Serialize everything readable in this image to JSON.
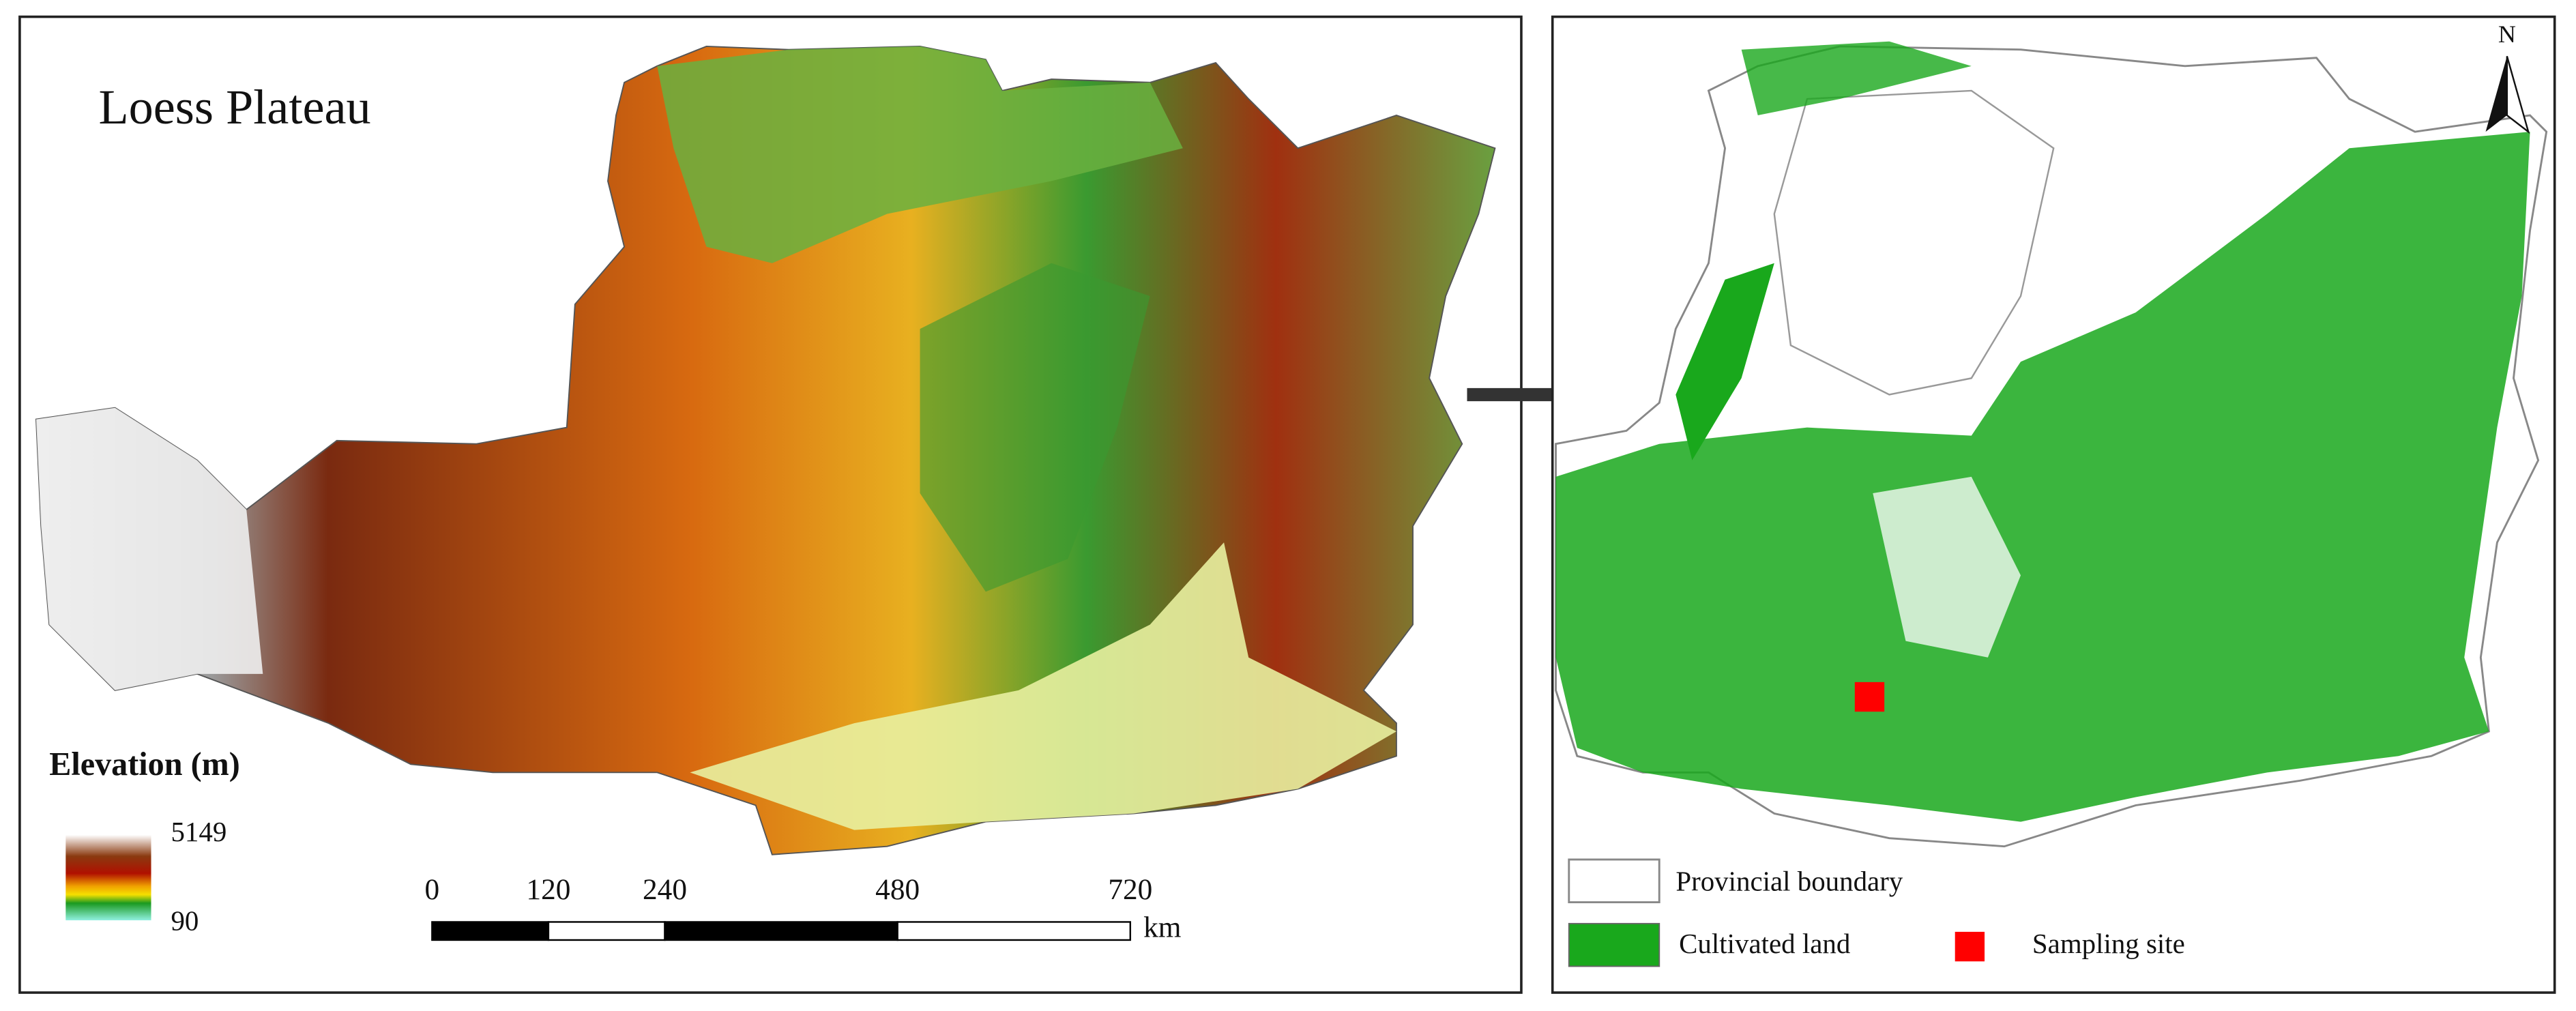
{
  "left_panel": {
    "title": "Loess Plateau",
    "elevation_legend": {
      "title": "Elevation (m)",
      "max": 5149,
      "min": 90
    },
    "scale_bar": {
      "ticks": [
        0,
        120,
        240,
        480,
        720
      ],
      "unit": "km"
    }
  },
  "right_panel": {
    "north": "N",
    "legend": {
      "items": [
        "Provincial boundary",
        "Cultivated land",
        "Sampling site"
      ]
    }
  }
}
